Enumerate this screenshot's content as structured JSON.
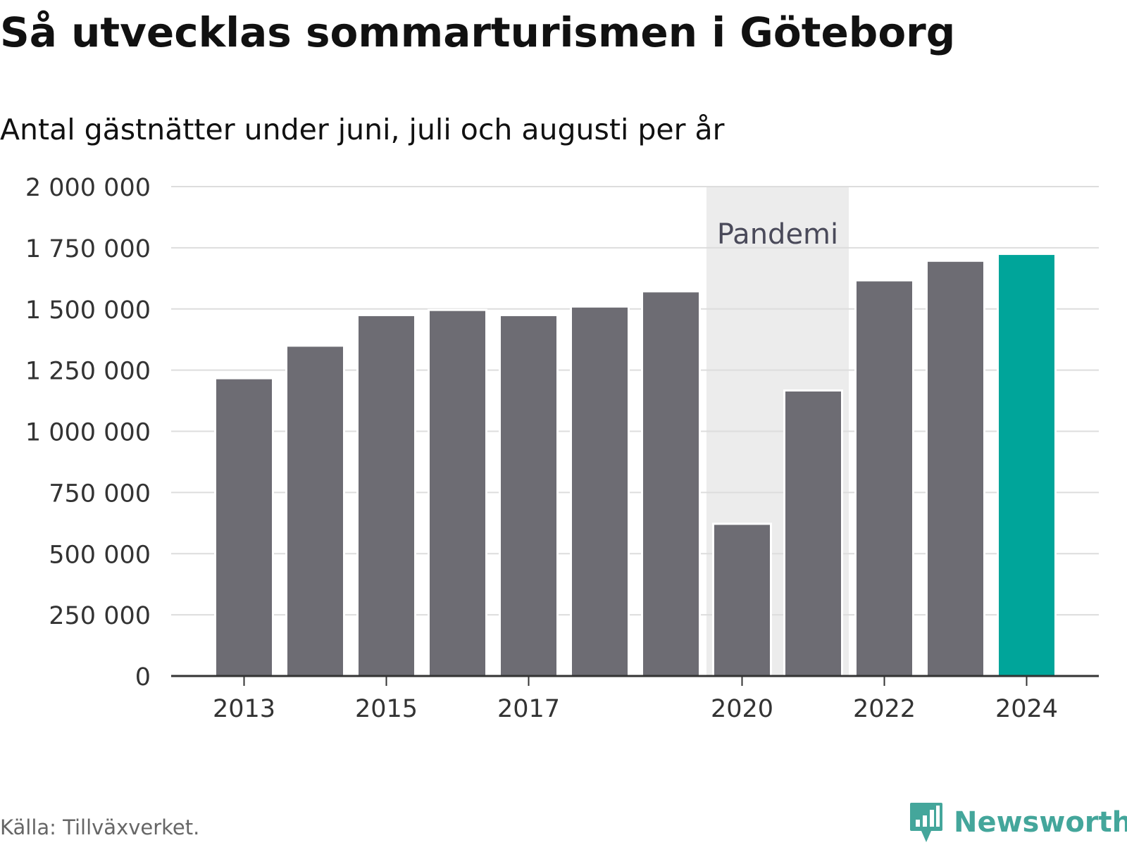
{
  "title": "Så utvecklas sommarturismen i Göteborg",
  "subtitle": "Antal gästnätter under juni, juli och augusti per år",
  "source": "Källa: Tillväxverket.",
  "brand": {
    "name": "Newsworthy",
    "icon": "newsworthy-chart-bubble-icon",
    "color": "#44a69b"
  },
  "colors": {
    "bar": "#6d6c73",
    "highlight": "#00a59a",
    "band": "#ececec",
    "grid": "#dddddd",
    "axis": "#333333",
    "annotation": "#4a4a5a"
  },
  "chart_data": {
    "type": "bar",
    "categories": [
      "2013",
      "2014",
      "2015",
      "2016",
      "2017",
      "2018",
      "2019",
      "2020",
      "2021",
      "2022",
      "2023",
      "2024"
    ],
    "x_tick_labels": [
      "2013",
      "2015",
      "2017",
      "2020",
      "2022",
      "2024"
    ],
    "values": [
      1217000,
      1350000,
      1475000,
      1496000,
      1475000,
      1510000,
      1572000,
      622000,
      1167000,
      1617000,
      1697000,
      1725000
    ],
    "highlight_category": "2024",
    "ylim": [
      0,
      2000000
    ],
    "y_ticks": [
      0,
      250000,
      500000,
      750000,
      1000000,
      1250000,
      1500000,
      1750000,
      2000000
    ],
    "y_tick_labels": [
      "0",
      "250 000",
      "500 000",
      "750 000",
      "1 000 000",
      "1 250 000",
      "1 500 000",
      "1 750 000",
      "2 000 000"
    ],
    "grid": true,
    "xlabel": "",
    "ylabel": "",
    "annotation": {
      "label": "Pandemi",
      "from": "2020",
      "to": "2021"
    }
  }
}
